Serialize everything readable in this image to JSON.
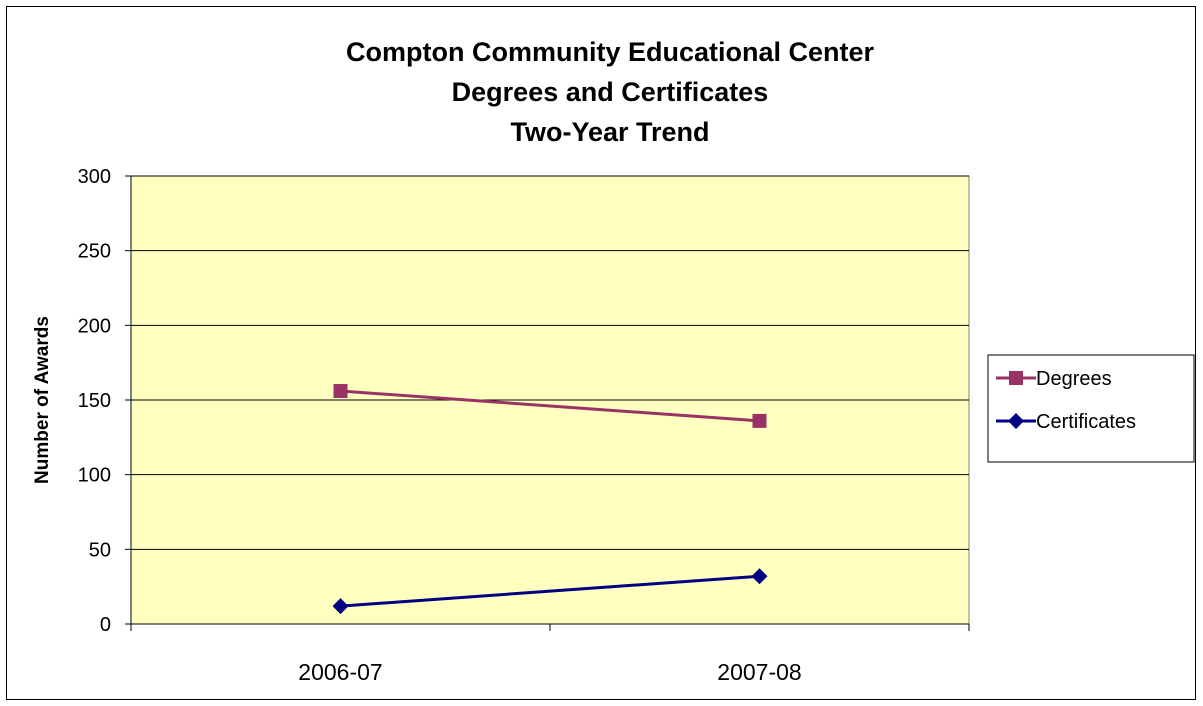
{
  "chart_data": {
    "type": "line",
    "title_lines": [
      "Compton Community Educational Center",
      "Degrees and Certificates",
      "Two-Year Trend"
    ],
    "xlabel": "",
    "ylabel": "Number of Awards",
    "categories": [
      "2006-07",
      "2007-08"
    ],
    "ylim": [
      0,
      300
    ],
    "yticks": [
      "0",
      "50",
      "100",
      "150",
      "200",
      "250",
      "300"
    ],
    "grid": true,
    "legend_position": "right",
    "plot_background": "#FFFFC0",
    "series": [
      {
        "name": "Degrees",
        "values": [
          156,
          136
        ],
        "color": "#993366",
        "marker": "square"
      },
      {
        "name": "Certificates",
        "values": [
          12,
          32
        ],
        "color": "#000080",
        "marker": "diamond"
      }
    ]
  }
}
